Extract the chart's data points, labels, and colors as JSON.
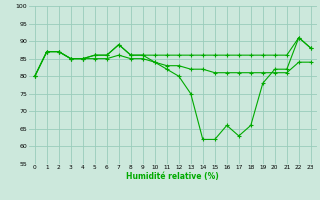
{
  "x": [
    0,
    1,
    2,
    3,
    4,
    5,
    6,
    7,
    8,
    9,
    10,
    11,
    12,
    13,
    14,
    15,
    16,
    17,
    18,
    19,
    20,
    21,
    22,
    23
  ],
  "line1": [
    80,
    87,
    87,
    85,
    85,
    86,
    86,
    89,
    86,
    86,
    86,
    86,
    86,
    86,
    86,
    86,
    86,
    86,
    86,
    86,
    86,
    86,
    91,
    88
  ],
  "line2": [
    80,
    87,
    87,
    85,
    85,
    86,
    86,
    89,
    86,
    86,
    84,
    82,
    80,
    75,
    62,
    62,
    66,
    63,
    66,
    78,
    82,
    82,
    91,
    88
  ],
  "line3": [
    80,
    87,
    87,
    85,
    85,
    85,
    85,
    86,
    85,
    85,
    84,
    83,
    83,
    82,
    82,
    81,
    81,
    81,
    81,
    81,
    81,
    81,
    84,
    84
  ],
  "ylim": [
    55,
    100
  ],
  "yticks": [
    55,
    60,
    65,
    70,
    75,
    80,
    85,
    90,
    95,
    100
  ],
  "xlabel": "Humidité relative (%)",
  "line_color": "#00aa00",
  "bg_color": "#cce8dc",
  "grid_color": "#99ccbb",
  "marker": "+",
  "markersize": 3,
  "linewidth": 0.8
}
